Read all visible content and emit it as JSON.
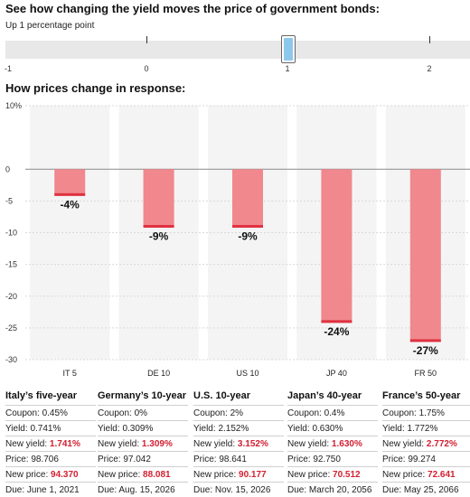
{
  "headings": {
    "slider": "See how changing the yield moves the price of government bonds:",
    "chart": "How prices change in response:"
  },
  "slider": {
    "label": "Up 1 percentage point",
    "value": 1,
    "ticks": [
      "-1",
      "0",
      "1",
      "2"
    ]
  },
  "colors": {
    "bar": "#f0888e",
    "bar_edge": "#e03140",
    "column_band": "#f4f4f4",
    "highlight_red": "#d31f31",
    "slider_fill": "#8ec7ec"
  },
  "chart_data": {
    "type": "bar",
    "categories": [
      "IT 5",
      "DE 10",
      "US 10",
      "JP 40",
      "FR 50"
    ],
    "values": [
      -4,
      -9,
      -9,
      -24,
      -27
    ],
    "data_labels": [
      "-4%",
      "-9%",
      "-9%",
      "-24%",
      "-27%"
    ],
    "ylim": [
      -30,
      10
    ],
    "yticks": [
      10,
      0,
      -5,
      -10,
      -15,
      -20,
      -25,
      -30
    ],
    "ytick_labels": [
      "10%",
      "0",
      "-5",
      "-10",
      "-15",
      "-20",
      "-25",
      "-30"
    ],
    "grid": true
  },
  "bonds": [
    {
      "title": "Italy’s five-year",
      "coupon_label": "Coupon:",
      "coupon": "0.45%",
      "yield_label": "Yield:",
      "yield": "0.741%",
      "new_yield_label": "New yield:",
      "new_yield": "1.741%",
      "price_label": "Price:",
      "price": "98.706",
      "new_price_label": "New price:",
      "new_price": "94.370",
      "due_label": "Due:",
      "due": "June 1, 2021"
    },
    {
      "title": "Germany’s 10-year",
      "coupon_label": "Coupon:",
      "coupon": "0%",
      "yield_label": "Yield:",
      "yield": "0.309%",
      "new_yield_label": "New yield:",
      "new_yield": "1.309%",
      "price_label": "Price:",
      "price": "97.042",
      "new_price_label": "New price:",
      "new_price": "88.081",
      "due_label": "Due:",
      "due": "Aug. 15, 2026"
    },
    {
      "title": "U.S. 10-year",
      "coupon_label": "Coupon:",
      "coupon": "2%",
      "yield_label": "Yield:",
      "yield": "2.152%",
      "new_yield_label": "New yield:",
      "new_yield": "3.152%",
      "price_label": "Price:",
      "price": "98.641",
      "new_price_label": "New price:",
      "new_price": "90.177",
      "due_label": "Due:",
      "due": "Nov. 15, 2026"
    },
    {
      "title": "Japan’s 40-year",
      "coupon_label": "Coupon:",
      "coupon": "0.4%",
      "yield_label": "Yield:",
      "yield": "0.630%",
      "new_yield_label": "New yield:",
      "new_yield": "1.630%",
      "price_label": "Price:",
      "price": "92.750",
      "new_price_label": "New price:",
      "new_price": "70.512",
      "due_label": "Due:",
      "due": "March 20, 2056"
    },
    {
      "title": "France’s 50-year",
      "coupon_label": "Coupon:",
      "coupon": "1.75%",
      "yield_label": "Yield:",
      "yield": "1.772%",
      "new_yield_label": "New yield:",
      "new_yield": "2.772%",
      "price_label": "Price:",
      "price": "99.274",
      "new_price_label": "New price:",
      "new_price": "72.641",
      "due_label": "Due:",
      "due": "May 25, 2066"
    }
  ]
}
